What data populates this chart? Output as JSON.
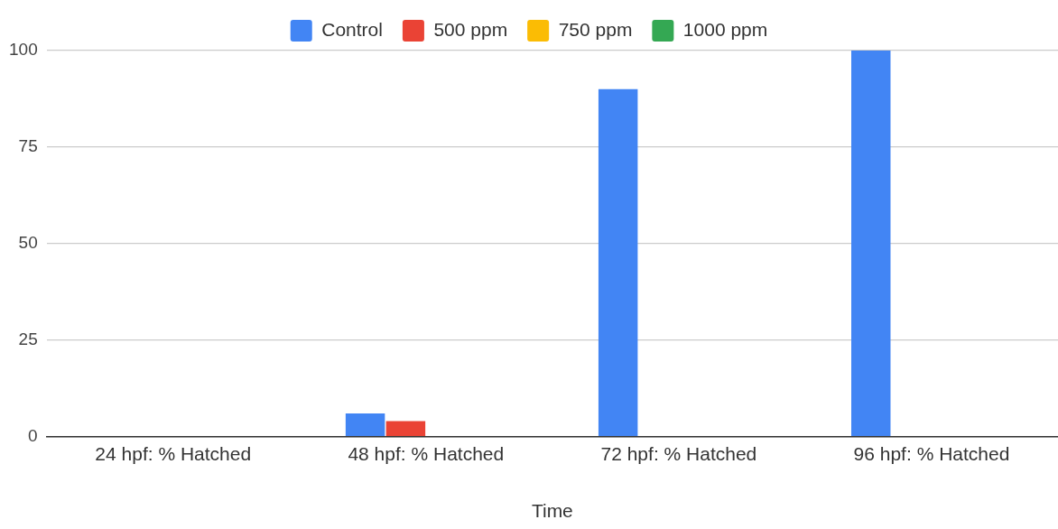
{
  "chart_data": {
    "type": "bar",
    "xlabel": "Time",
    "categories": [
      "24 hpf: % Hatched",
      "48 hpf: % Hatched",
      "72 hpf: % Hatched",
      "96 hpf: % Hatched"
    ],
    "series": [
      {
        "name": "Control",
        "color": "#4285f4",
        "values": [
          0,
          6,
          90,
          100
        ]
      },
      {
        "name": "500 ppm",
        "color": "#ea4335",
        "values": [
          0,
          4,
          0,
          0
        ]
      },
      {
        "name": "750 ppm",
        "color": "#fbbc04",
        "values": [
          0,
          0,
          0,
          0
        ]
      },
      {
        "name": "1000 ppm",
        "color": "#34a853",
        "values": [
          0,
          0,
          0,
          0
        ]
      }
    ],
    "ylim": [
      0,
      100
    ],
    "yticks": [
      0,
      25,
      50,
      75,
      100
    ],
    "grid": "y",
    "legend": "top"
  }
}
